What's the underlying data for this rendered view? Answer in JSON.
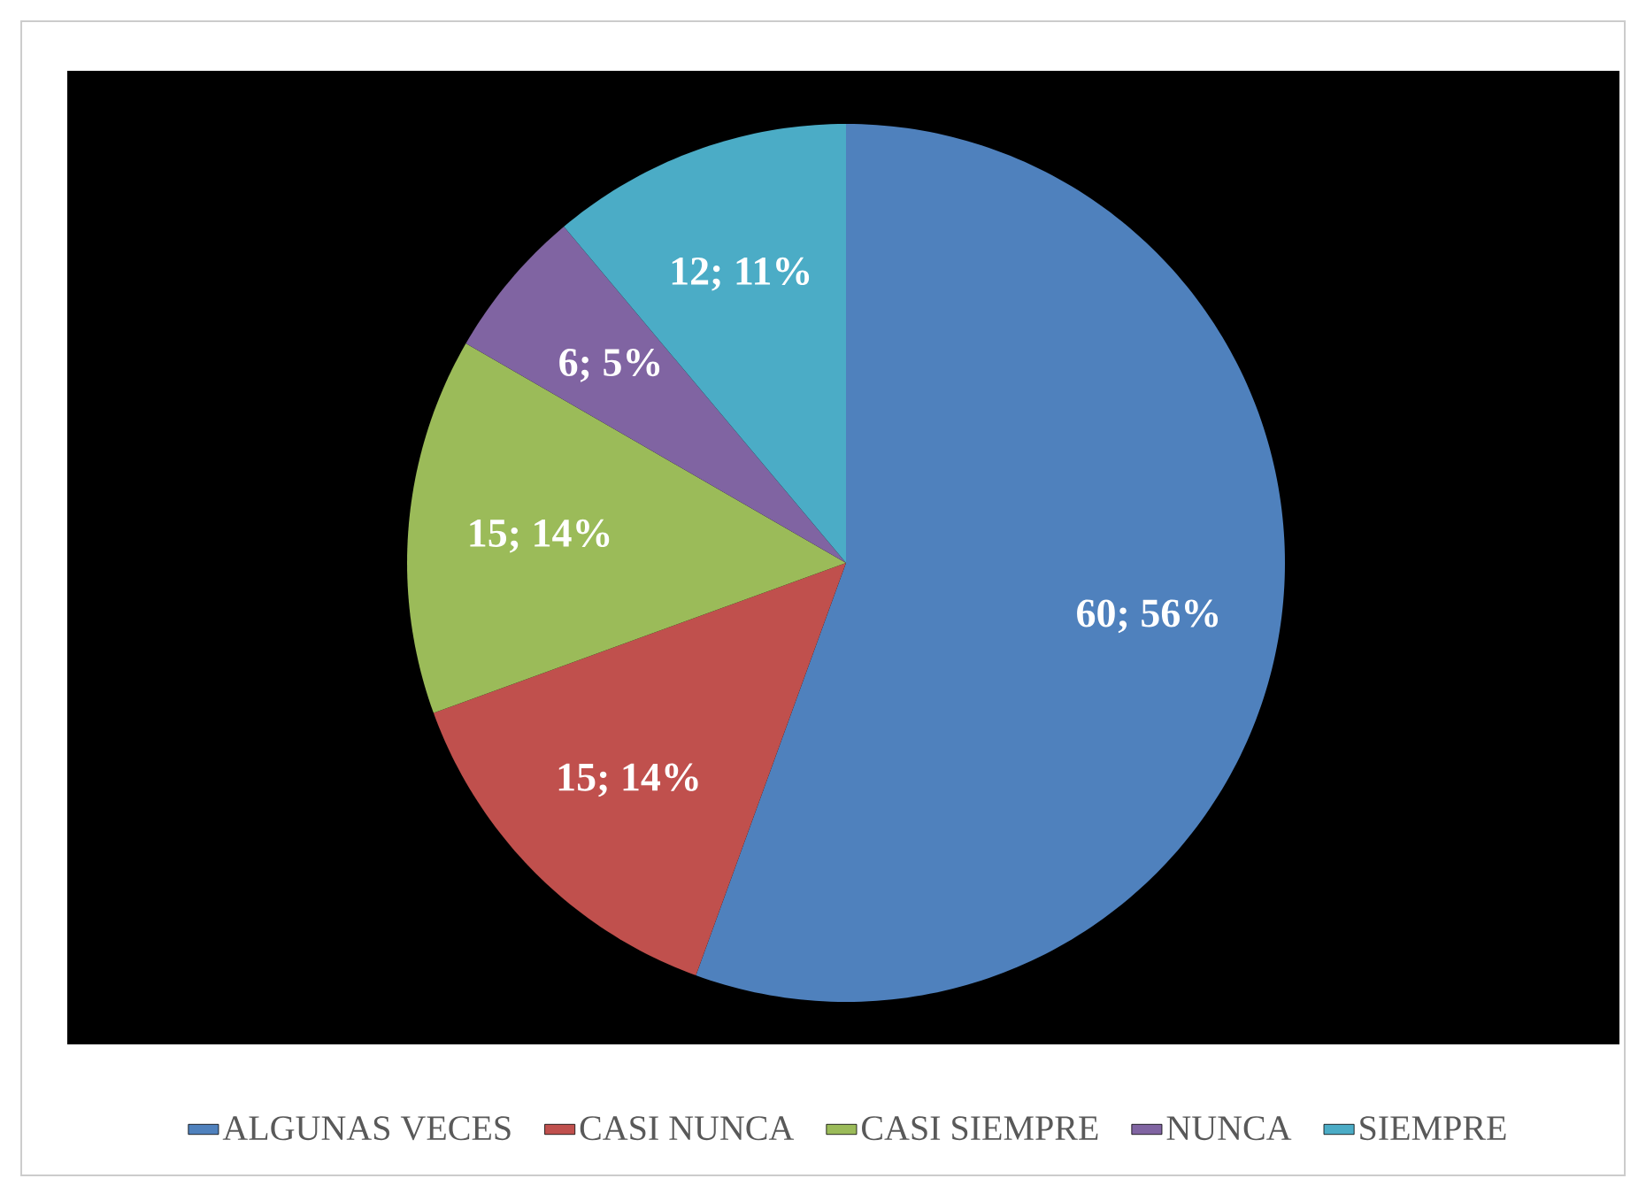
{
  "chart_data": {
    "type": "pie",
    "categories": [
      "ALGUNAS VECES",
      "CASI NUNCA",
      "CASI SIEMPRE",
      "NUNCA",
      "SIEMPRE"
    ],
    "values": [
      60,
      15,
      15,
      6,
      12
    ],
    "colors": [
      "#4f81bd",
      "#c0504d",
      "#9bbb59",
      "#8064a2",
      "#4bacc6"
    ],
    "value_labels": [
      "60; 56%",
      "15; 14%",
      "15; 14%",
      "6; 5%",
      "12; 11%"
    ],
    "legend": "bottom"
  }
}
